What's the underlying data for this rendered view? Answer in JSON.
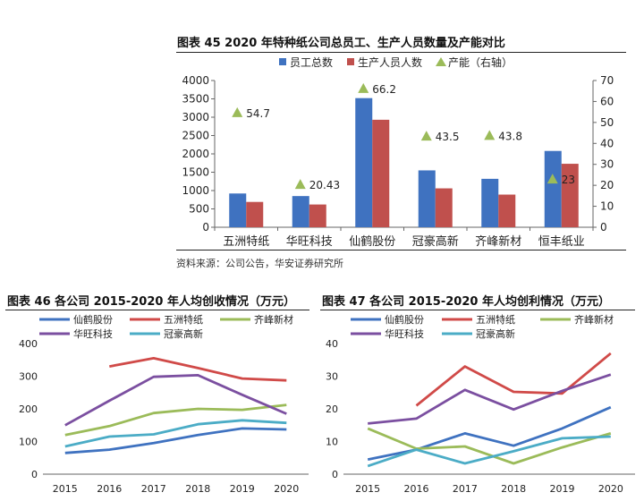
{
  "chart_data": [
    {
      "type": "bar",
      "title": "图表 45 2020 年特种纸公司总员工、生产人员数量及产能对比",
      "categories": [
        "五洲特纸",
        "华旺科技",
        "仙鹤股份",
        "冠豪高新",
        "齐峰新材",
        "恒丰纸业"
      ],
      "series": [
        {
          "name": "员工总数",
          "values": [
            920,
            850,
            3520,
            1550,
            1320,
            2080
          ],
          "color": "#3f72c0",
          "axis": "left"
        },
        {
          "name": "生产人员人数",
          "values": [
            690,
            620,
            2930,
            1060,
            890,
            1730
          ],
          "color": "#c0504d",
          "axis": "left"
        },
        {
          "name": "产能（右轴）",
          "values": [
            54.7,
            20.43,
            66.2,
            43.5,
            43.8,
            23
          ],
          "labels": [
            "54.7",
            "20.43",
            "66.2",
            "43.5",
            "43.8",
            "23"
          ],
          "color": "#9bbb59",
          "axis": "right",
          "marker": "triangle"
        }
      ],
      "ylim": [
        0,
        4000
      ],
      "yticks": [
        0,
        500,
        1000,
        1500,
        2000,
        2500,
        3000,
        3500,
        4000
      ],
      "y2lim": [
        0,
        70
      ],
      "y2ticks": [
        0,
        10,
        20,
        30,
        40,
        50,
        60,
        70
      ],
      "grid": false,
      "legend": "top"
    },
    {
      "type": "line",
      "title": "图表 46 各公司 2015-2020 年人均创收情况（万元）",
      "x": [
        "2015",
        "2016",
        "2017",
        "2018",
        "2019",
        "2020"
      ],
      "series": [
        {
          "name": "仙鹤股份",
          "values": [
            65,
            75,
            95,
            120,
            140,
            137
          ],
          "color": "#3f72c0"
        },
        {
          "name": "五洲特纸",
          "values": [
            null,
            330,
            355,
            325,
            293,
            287
          ],
          "color": "#d04a48"
        },
        {
          "name": "齐峰新材",
          "values": [
            120,
            147,
            187,
            200,
            197,
            212
          ],
          "color": "#9bbb59"
        },
        {
          "name": "华旺科技",
          "values": [
            150,
            225,
            298,
            303,
            243,
            185
          ],
          "color": "#7b4fa0"
        },
        {
          "name": "冠豪高新",
          "values": [
            85,
            115,
            122,
            153,
            165,
            157
          ],
          "color": "#4bacc6"
        }
      ],
      "ylim": [
        0,
        400
      ],
      "yticks": [
        0,
        100,
        200,
        300,
        400
      ],
      "grid": false,
      "legend": "top"
    },
    {
      "type": "line",
      "title": "图表 47 各公司 2015-2020 年人均创利情况（万元）",
      "x": [
        "2015",
        "2016",
        "2017",
        "2018",
        "2019",
        "2020"
      ],
      "series": [
        {
          "name": "仙鹤股份",
          "values": [
            4.5,
            7.5,
            12.5,
            8.7,
            14,
            20.5
          ],
          "color": "#3f72c0"
        },
        {
          "name": "五洲特纸",
          "values": [
            null,
            21,
            33,
            25.2,
            24.7,
            37
          ],
          "color": "#d04a48"
        },
        {
          "name": "齐峰新材",
          "values": [
            14,
            7.8,
            8.5,
            3.3,
            8.2,
            12.5
          ],
          "color": "#9bbb59"
        },
        {
          "name": "华旺科技",
          "values": [
            15.5,
            17,
            25.8,
            19.8,
            25.5,
            30.5
          ],
          "color": "#7b4fa0"
        },
        {
          "name": "冠豪高新",
          "values": [
            2.5,
            7.5,
            3.3,
            7,
            11,
            11.5
          ],
          "color": "#4bacc6"
        }
      ],
      "ylim": [
        0,
        40
      ],
      "yticks": [
        0,
        10,
        20,
        30,
        40
      ],
      "grid": false,
      "legend": "top"
    }
  ],
  "source": "资料来源：公司公告，华安证券研究所"
}
